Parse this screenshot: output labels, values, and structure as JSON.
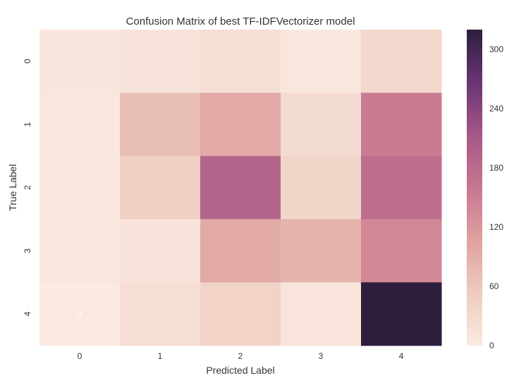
{
  "chart_data": {
    "type": "heatmap",
    "title": "Confusion Matrix of best TF-IDFVectorizer model",
    "xlabel": "Predicted Label",
    "ylabel": "True Label",
    "x_categories": [
      "0",
      "1",
      "2",
      "3",
      "4"
    ],
    "y_categories": [
      "0",
      "1",
      "2",
      "3",
      "4"
    ],
    "values": [
      [
        8,
        12,
        18,
        5,
        30
      ],
      [
        4,
        70,
        95,
        25,
        155
      ],
      [
        3,
        45,
        190,
        35,
        175
      ],
      [
        5,
        12,
        95,
        85,
        140
      ],
      [
        0,
        20,
        40,
        10,
        320
      ]
    ],
    "cell_annotation": {
      "row": 4,
      "col": 0,
      "text": "0"
    },
    "colorbar": {
      "min": 0,
      "max": 320,
      "ticks": [
        "0",
        "60",
        "120",
        "180",
        "240",
        "300"
      ],
      "colors": [
        "#faeae1",
        "#eecbbe",
        "#dfa1a0",
        "#c87790",
        "#a55787",
        "#6a3474",
        "#2d1e3e"
      ]
    },
    "grid": false
  }
}
